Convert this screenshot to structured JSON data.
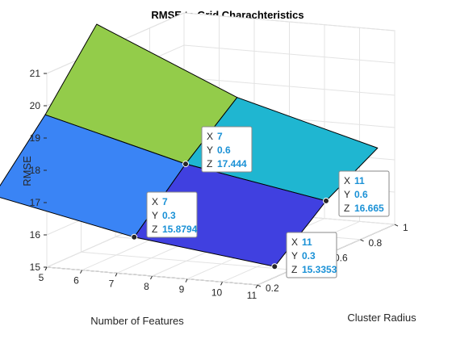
{
  "chart_data": {
    "type": "surface",
    "title": "RMSE to Grid Charachteristics",
    "xlabel": "Number of Features",
    "ylabel": "Cluster Radius",
    "zlabel": "RMSE",
    "xlim": [
      5,
      11
    ],
    "ylim": [
      0.2,
      1
    ],
    "zlim": [
      15,
      21
    ],
    "x_ticks": [
      "5",
      "6",
      "7",
      "8",
      "9",
      "10",
      "11"
    ],
    "y_ticks": [
      "0.2",
      "0.4",
      "0.6",
      "0.8",
      "1"
    ],
    "z_ticks": [
      "15",
      "16",
      "17",
      "18",
      "19",
      "20",
      "21"
    ],
    "grid": true,
    "x": [
      3,
      7,
      11
    ],
    "y": [
      0.3,
      0.6,
      0.9
    ],
    "z": [
      [
        16.8,
        15.8794,
        15.3353
      ],
      [
        18.6,
        17.444,
        16.665
      ],
      [
        20.7,
        18.8,
        17.6
      ]
    ],
    "face_colors": [
      "#3a84f5",
      "#4040e0",
      "#93cc4a",
      "#1fb6d1"
    ],
    "datatips": [
      {
        "X": "7",
        "Y": "0.6",
        "Z": "17.444"
      },
      {
        "X": "7",
        "Y": "0.3",
        "Z": "15.8794"
      },
      {
        "X": "11",
        "Y": "0.6",
        "Z": "16.665"
      },
      {
        "X": "11",
        "Y": "0.3",
        "Z": "15.3353"
      }
    ]
  }
}
